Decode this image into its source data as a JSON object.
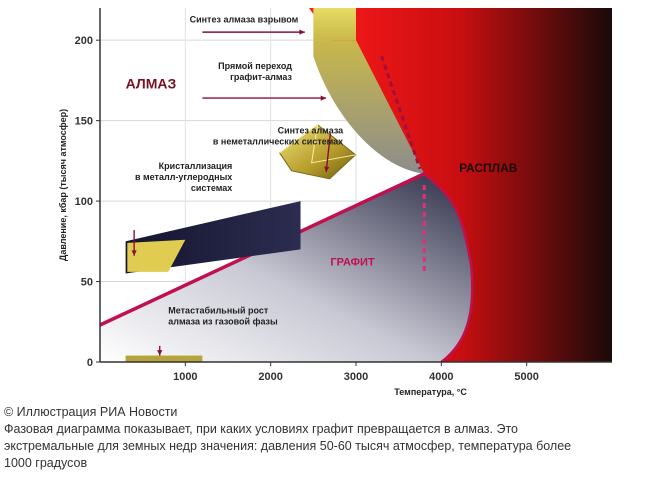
{
  "chart_data": {
    "type": "area",
    "title": "",
    "xlabel": "Температура, °С",
    "ylabel": "Давление, кбар (тысяч атмосфер)",
    "xlim": [
      0,
      6000
    ],
    "ylim": [
      0,
      220
    ],
    "x_ticks": [
      1000,
      2000,
      3000,
      4000,
      5000
    ],
    "y_ticks": [
      0,
      50,
      100,
      150,
      200
    ],
    "grid": true,
    "regions": [
      {
        "name": "diamond",
        "label": "АЛМАЗ",
        "color": "#7a1022"
      },
      {
        "name": "graphite",
        "label": "ГРАФИТ",
        "color": "#c01050"
      },
      {
        "name": "melt",
        "label": "РАСПЛАВ",
        "color": "#1a0a0a"
      }
    ],
    "boundaries": {
      "graphite_diamond": {
        "x": [
          0,
          3800
        ],
        "y": [
          23,
          117
        ]
      },
      "triple_point": {
        "x": 3800,
        "y": 117
      },
      "graphite_melt": {
        "x": [
          3800,
          4150,
          4350,
          4400,
          4300,
          4000
        ],
        "y": [
          117,
          95,
          60,
          30,
          12,
          0
        ]
      },
      "diamond_melt": {
        "x": [
          3800,
          2450
        ],
        "y": [
          117,
          218
        ]
      },
      "direct_transition_dotted": {
        "x": [
          3300,
          3750
        ],
        "y": [
          190,
          120
        ]
      },
      "vertical_dotted": {
        "x": [
          3800,
          3800
        ],
        "y": [
          110,
          55
        ]
      }
    },
    "zones": [
      {
        "name": "explosion_synthesis",
        "label": "Синтез алмаза взрывом",
        "x": [
          2500,
          3000
        ],
        "y": [
          200,
          220
        ]
      },
      {
        "name": "direct_transition",
        "label": "Прямой переход графит-алмаз",
        "x": [
          2500,
          3800
        ],
        "y": [
          115,
          200
        ]
      },
      {
        "name": "nonmetal_synthesis",
        "label": "Синтез алмаза в неметаллических системах",
        "x": [
          2000,
          2800
        ],
        "y": [
          105,
          135
        ]
      },
      {
        "name": "metal_carbon_crystallization",
        "label": "Кристаллизация в металл-углеродных системах",
        "x": [
          300,
          2300
        ],
        "y": [
          55,
          100
        ]
      },
      {
        "name": "metastable_growth",
        "label": "Метастабильный рост алмаза из газовой фазы",
        "x": [
          300,
          1200
        ],
        "y": [
          0,
          4
        ]
      }
    ]
  },
  "caption": {
    "copyright": "© Иллюстрация РИА Новости",
    "line1": "Фазовая диаграмма показывает, при каких условиях графит превращается в алмаз. Это",
    "line2": "экстремальные для земных недр значения: давления 50-60 тысяч атмосфер, температура более",
    "line3": "1000 градусов"
  }
}
